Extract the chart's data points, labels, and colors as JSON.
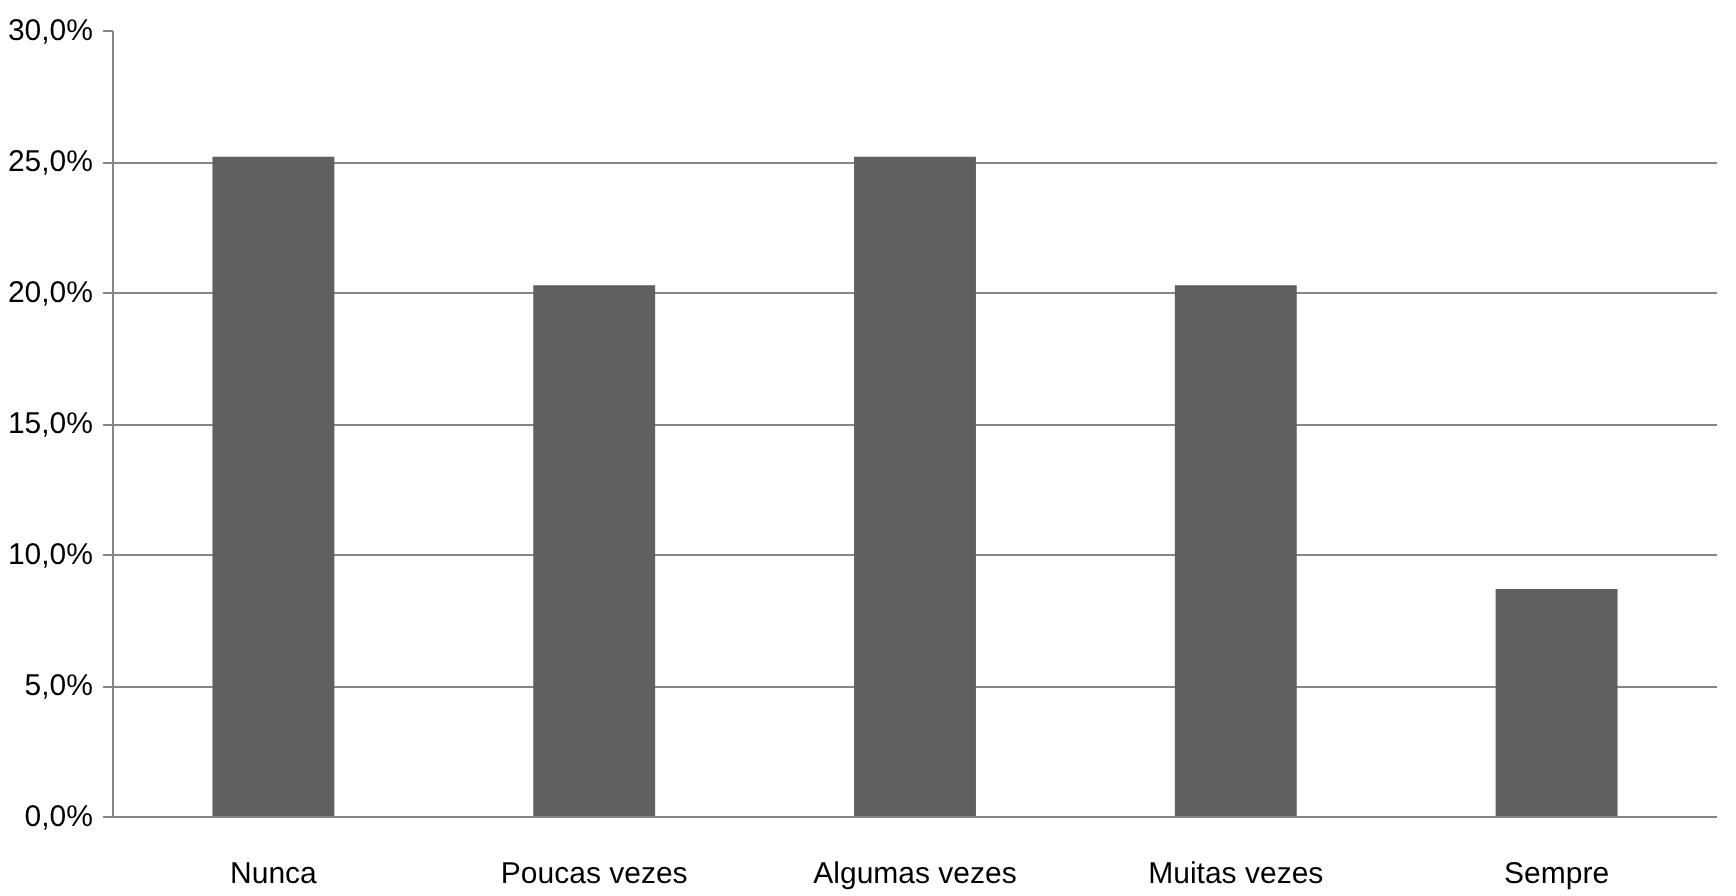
{
  "chart_data": {
    "type": "bar",
    "categories": [
      "Nunca",
      "Poucas vezes",
      "Algumas vezes",
      "Muitas vezes",
      "Sempre"
    ],
    "values": [
      25.2,
      20.3,
      25.2,
      20.3,
      8.7
    ],
    "color": "#606060",
    "ylim": [
      0,
      30
    ],
    "yticks": [
      {
        "value": 0,
        "label": "0,0%"
      },
      {
        "value": 5,
        "label": "5,0%"
      },
      {
        "value": 10,
        "label": "10,0%"
      },
      {
        "value": 15,
        "label": "15,0%"
      },
      {
        "value": 20,
        "label": "20,0%"
      },
      {
        "value": 25,
        "label": "25,0%"
      },
      {
        "value": 30,
        "label": "30,0%"
      }
    ],
    "grid": "y"
  }
}
